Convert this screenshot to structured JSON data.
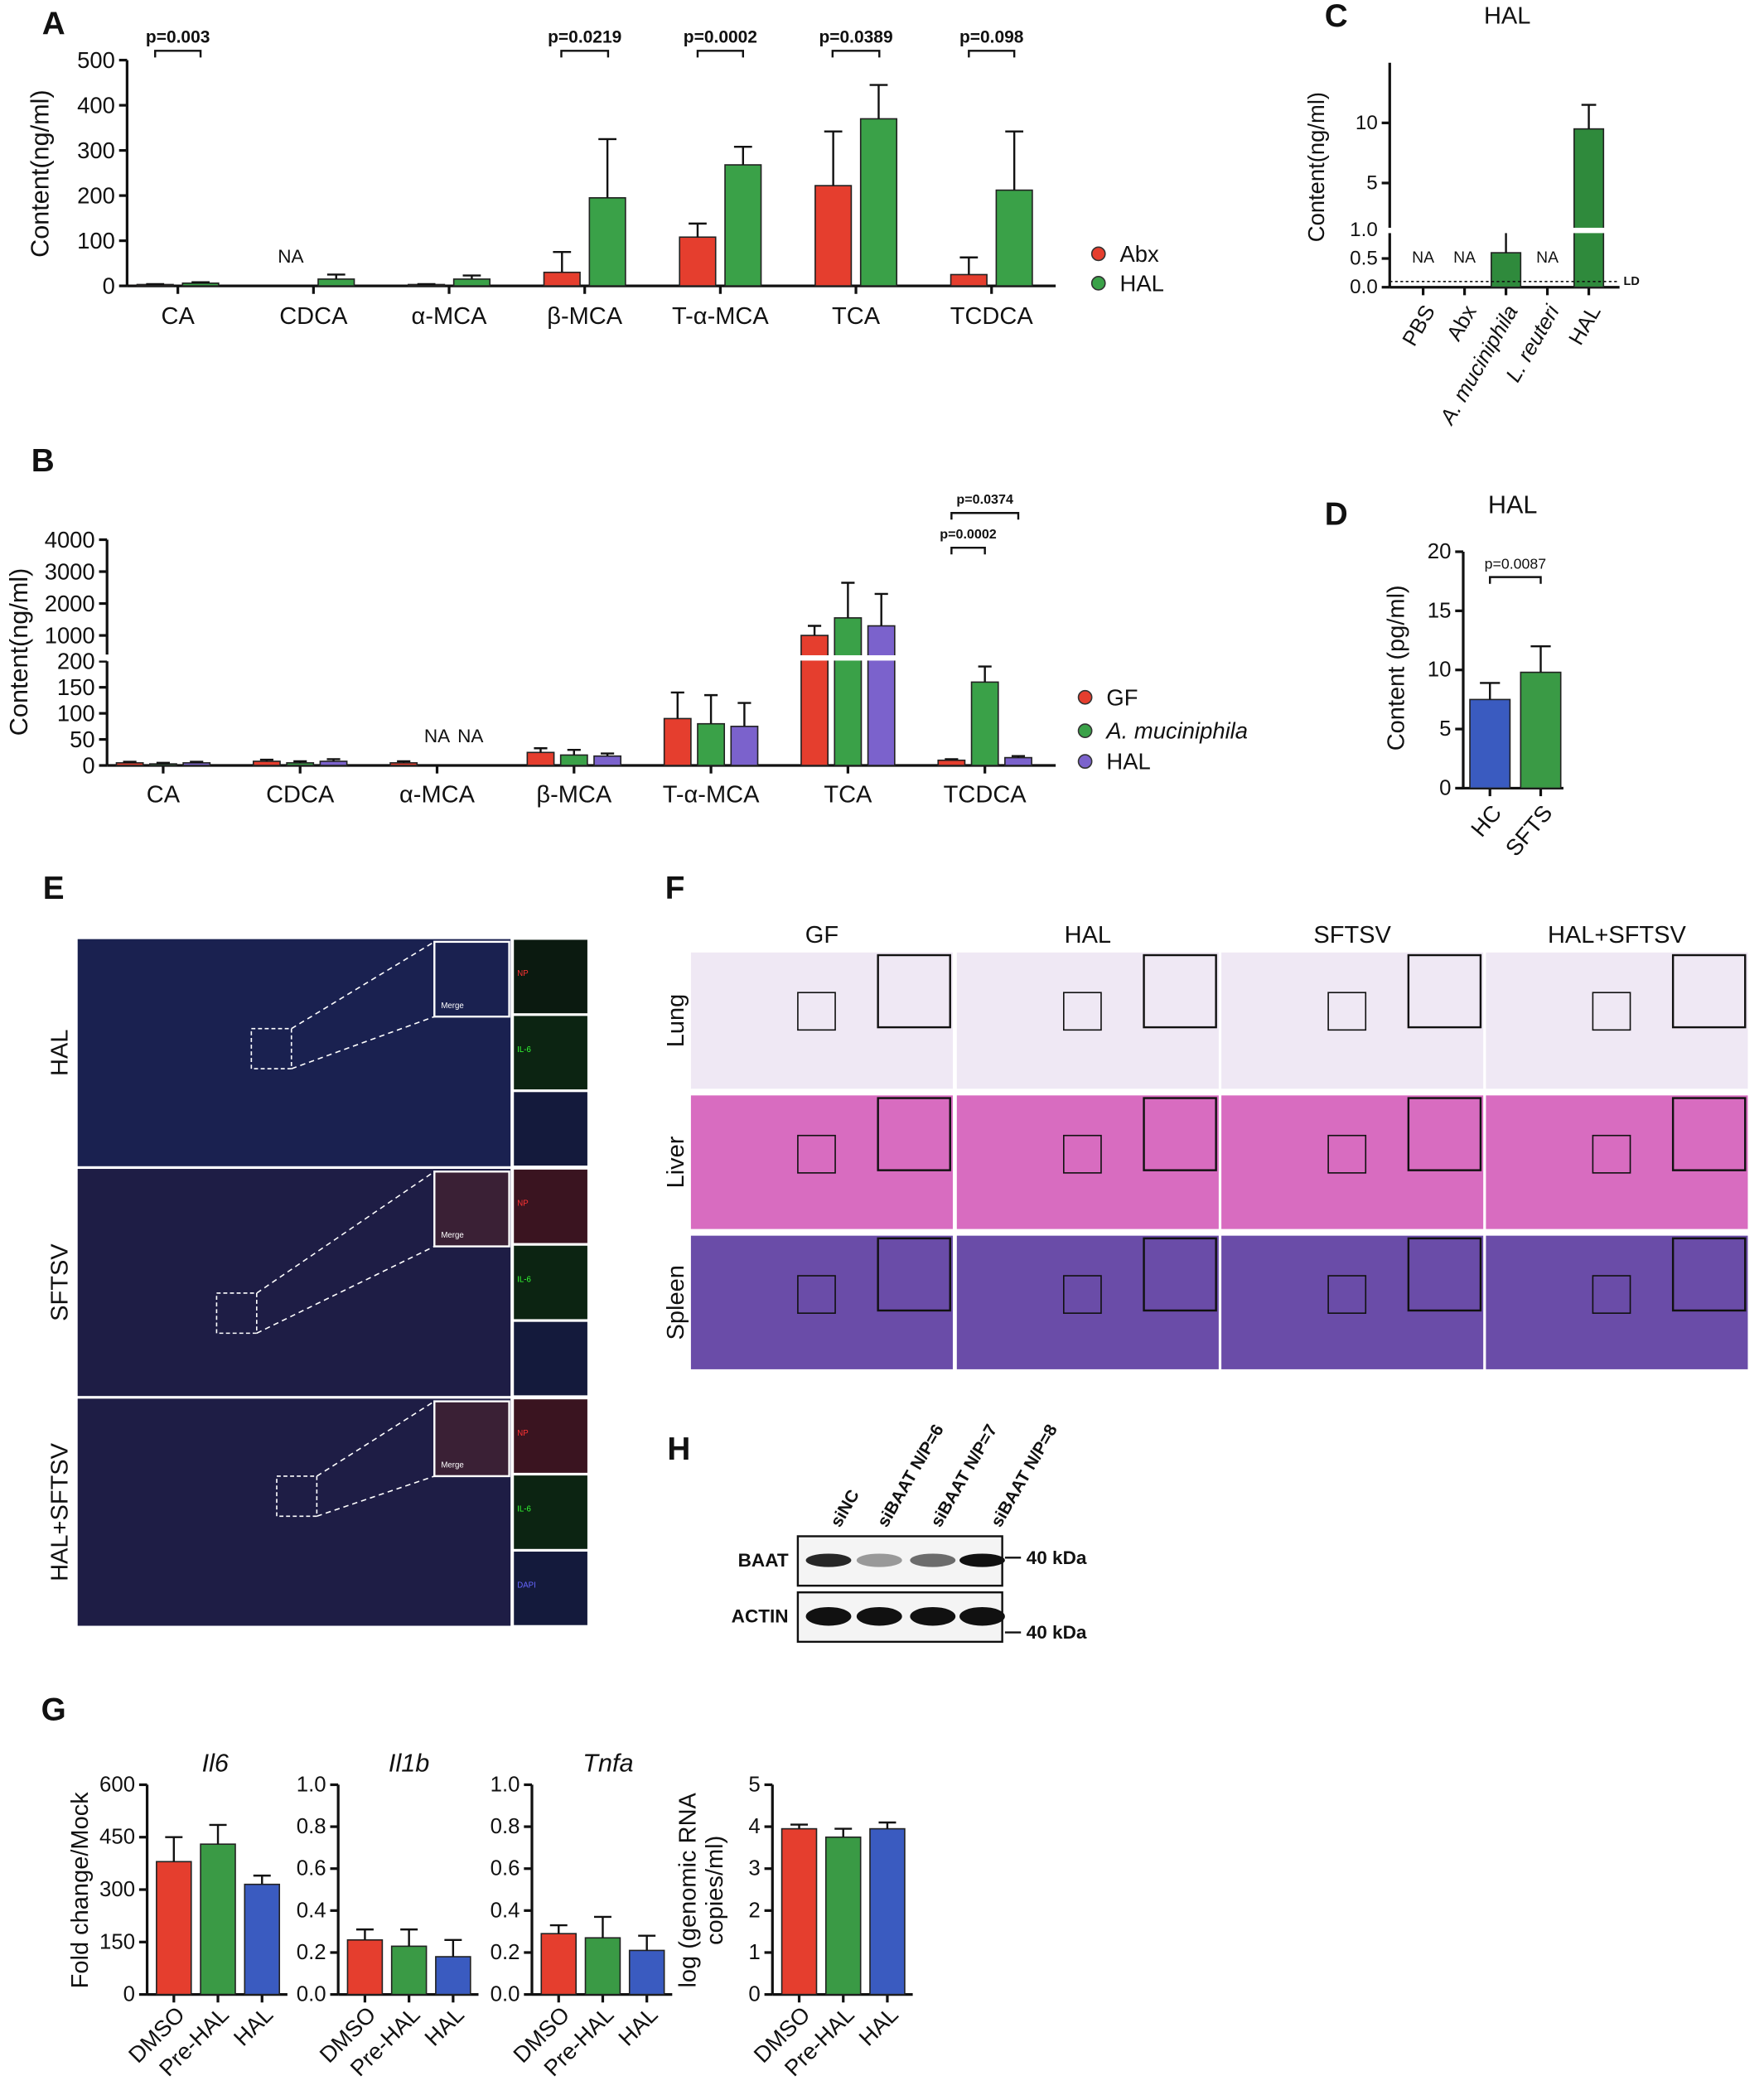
{
  "panel_labels": [
    "A",
    "B",
    "C",
    "D",
    "E",
    "F",
    "G",
    "H"
  ],
  "chart_data": [
    {
      "type": "bar",
      "ylabel": "Content(ng/ml)",
      "categories": [
        "CA",
        "CDCA",
        "α-MCA",
        "β-MCA",
        "T-α-MCA",
        "TCA",
        "TCDCA"
      ],
      "ylim": [
        0,
        500
      ],
      "yticks": [
        0,
        100,
        200,
        300,
        400,
        500
      ],
      "legend": "right",
      "na_label": "NA",
      "series": [
        {
          "name": "Abx",
          "color": "#e53e2e",
          "values": [
            3,
            null,
            3,
            30,
            108,
            222,
            25
          ],
          "errors": [
            1,
            null,
            1,
            45,
            30,
            120,
            38
          ]
        },
        {
          "name": "HAL",
          "color": "#3aa148",
          "values": [
            6,
            15,
            15,
            195,
            268,
            370,
            212
          ],
          "errors": [
            2,
            10,
            8,
            130,
            40,
            75,
            130
          ]
        }
      ],
      "annotations": [
        "p=0.003",
        "p=0.0219",
        "p=0.0002",
        "p=0.0389",
        "p=0.098"
      ]
    },
    {
      "type": "bar",
      "ylabel": "Content(ng/ml)",
      "categories": [
        "CA",
        "CDCA",
        "α-MCA",
        "β-MCA",
        "T-α-MCA",
        "TCA",
        "TCDCA"
      ],
      "ylim": [
        [
          0,
          200
        ],
        [
          400,
          4000
        ]
      ],
      "yticks": [
        0,
        50,
        100,
        150,
        200,
        1000,
        2000,
        3000,
        4000
      ],
      "legend": "right",
      "na_label": "NA",
      "series": [
        {
          "name": "GF",
          "color": "#e53e2e",
          "values": [
            5,
            8,
            5,
            25,
            90,
            1000,
            10
          ],
          "errors": [
            2,
            3,
            3,
            8,
            50,
            300,
            2
          ]
        },
        {
          "name": "A. muciniphila",
          "italic": true,
          "color": "#3aa148",
          "values": [
            3,
            5,
            null,
            20,
            80,
            1550,
            160
          ],
          "errors": [
            2,
            3,
            null,
            10,
            55,
            1100,
            30
          ]
        },
        {
          "name": "HAL",
          "color": "#7b62cc",
          "values": [
            5,
            8,
            null,
            18,
            75,
            1300,
            15
          ],
          "errors": [
            2,
            4,
            null,
            5,
            45,
            1000,
            3
          ]
        }
      ],
      "annotations": [
        "p=0.0002",
        "p=0.0374"
      ]
    },
    {
      "type": "bar",
      "title": "HAL",
      "ylabel": "Content(ng/ml)",
      "categories": [
        "PBS",
        "Abx",
        "A. muciniphila",
        "L. reuteri",
        "HAL"
      ],
      "ylim": [
        [
          0,
          1
        ],
        [
          1,
          15
        ]
      ],
      "yticks": [
        {
          "value": 0,
          "label": "0.0"
        },
        0.5,
        {
          "value": 1,
          "label": "1.0"
        },
        5,
        10
      ],
      "values": [
        null,
        null,
        0.6,
        null,
        9.5
      ],
      "errors": [
        null,
        null,
        0.45,
        null,
        2
      ],
      "color": "#2f8a3c",
      "na_label": "NA",
      "detection_limit": 0.1,
      "detection_label": "LD"
    },
    {
      "type": "bar",
      "title": "HAL",
      "ylabel": "Content (pg/ml)",
      "categories": [
        "HC",
        "SFTS"
      ],
      "ylim": [
        0,
        20
      ],
      "yticks": [
        0,
        5,
        10,
        15,
        20
      ],
      "values": [
        7.5,
        9.8
      ],
      "errors": [
        1.4,
        2.2
      ],
      "colors": [
        "#3a5bc0",
        "#3a9a45"
      ],
      "annotations": [
        "p=0.0087"
      ]
    },
    {
      "type": "bar",
      "title": "Il6",
      "ylabel": "Fold change/Mock",
      "categories": [
        "DMSO",
        "Pre-HAL",
        "HAL"
      ],
      "ylim": [
        0,
        600
      ],
      "yticks": [
        0,
        150,
        300,
        450,
        600
      ],
      "values": [
        380,
        430,
        315
      ],
      "errors": [
        70,
        55,
        25
      ],
      "colors": [
        "#e53e2e",
        "#3a9a45",
        "#3a5bc0"
      ]
    },
    {
      "type": "bar",
      "title": "Il1b",
      "categories": [
        "DMSO",
        "Pre-HAL",
        "HAL"
      ],
      "ylim": [
        0,
        1
      ],
      "yticks": [
        {
          "value": 0,
          "label": "0.0"
        },
        0.2,
        0.4,
        0.6,
        0.8,
        {
          "value": 1,
          "label": "1.0"
        }
      ],
      "values": [
        0.26,
        0.23,
        0.18
      ],
      "errors": [
        0.05,
        0.08,
        0.08
      ],
      "colors": [
        "#e53e2e",
        "#3a9a45",
        "#3a5bc0"
      ]
    },
    {
      "type": "bar",
      "title": "Tnfa",
      "categories": [
        "DMSO",
        "Pre-HAL",
        "HAL"
      ],
      "ylim": [
        0,
        1
      ],
      "yticks": [
        {
          "value": 0,
          "label": "0.0"
        },
        0.2,
        0.4,
        0.6,
        0.8,
        {
          "value": 1,
          "label": "1.0"
        }
      ],
      "values": [
        0.29,
        0.27,
        0.21
      ],
      "errors": [
        0.04,
        0.1,
        0.07
      ],
      "colors": [
        "#e53e2e",
        "#3a9a45",
        "#3a5bc0"
      ]
    },
    {
      "type": "bar",
      "ylabel": [
        "log (genomic RNA",
        "copies/ml)"
      ],
      "categories": [
        "DMSO",
        "Pre-HAL",
        "HAL"
      ],
      "ylim": [
        0,
        5
      ],
      "yticks": [
        0,
        1,
        2,
        3,
        4,
        5
      ],
      "values": [
        3.95,
        3.75,
        3.95
      ],
      "errors": [
        0.1,
        0.2,
        0.15
      ],
      "colors": [
        "#e53e2e",
        "#3a9a45",
        "#3a5bc0"
      ]
    }
  ],
  "panel_e": {
    "rows": [
      "HAL",
      "SFTSV",
      "HAL+SFTSV"
    ],
    "merge": "Merge",
    "channels": [
      "NP",
      "IL-6",
      "DAPI"
    ]
  },
  "panel_f": {
    "columns": [
      "GF",
      "HAL",
      "SFTSV",
      "HAL+SFTSV"
    ],
    "rows": [
      "Lung",
      "Liver",
      "Spleen"
    ]
  },
  "panel_h": {
    "lanes": [
      "siNC",
      "siBAAT N/P=6",
      "siBAAT N/P=7",
      "siBAAT N/P=8"
    ],
    "proteins": [
      "BAAT",
      "ACTIN"
    ],
    "marker": "40 kDa"
  }
}
